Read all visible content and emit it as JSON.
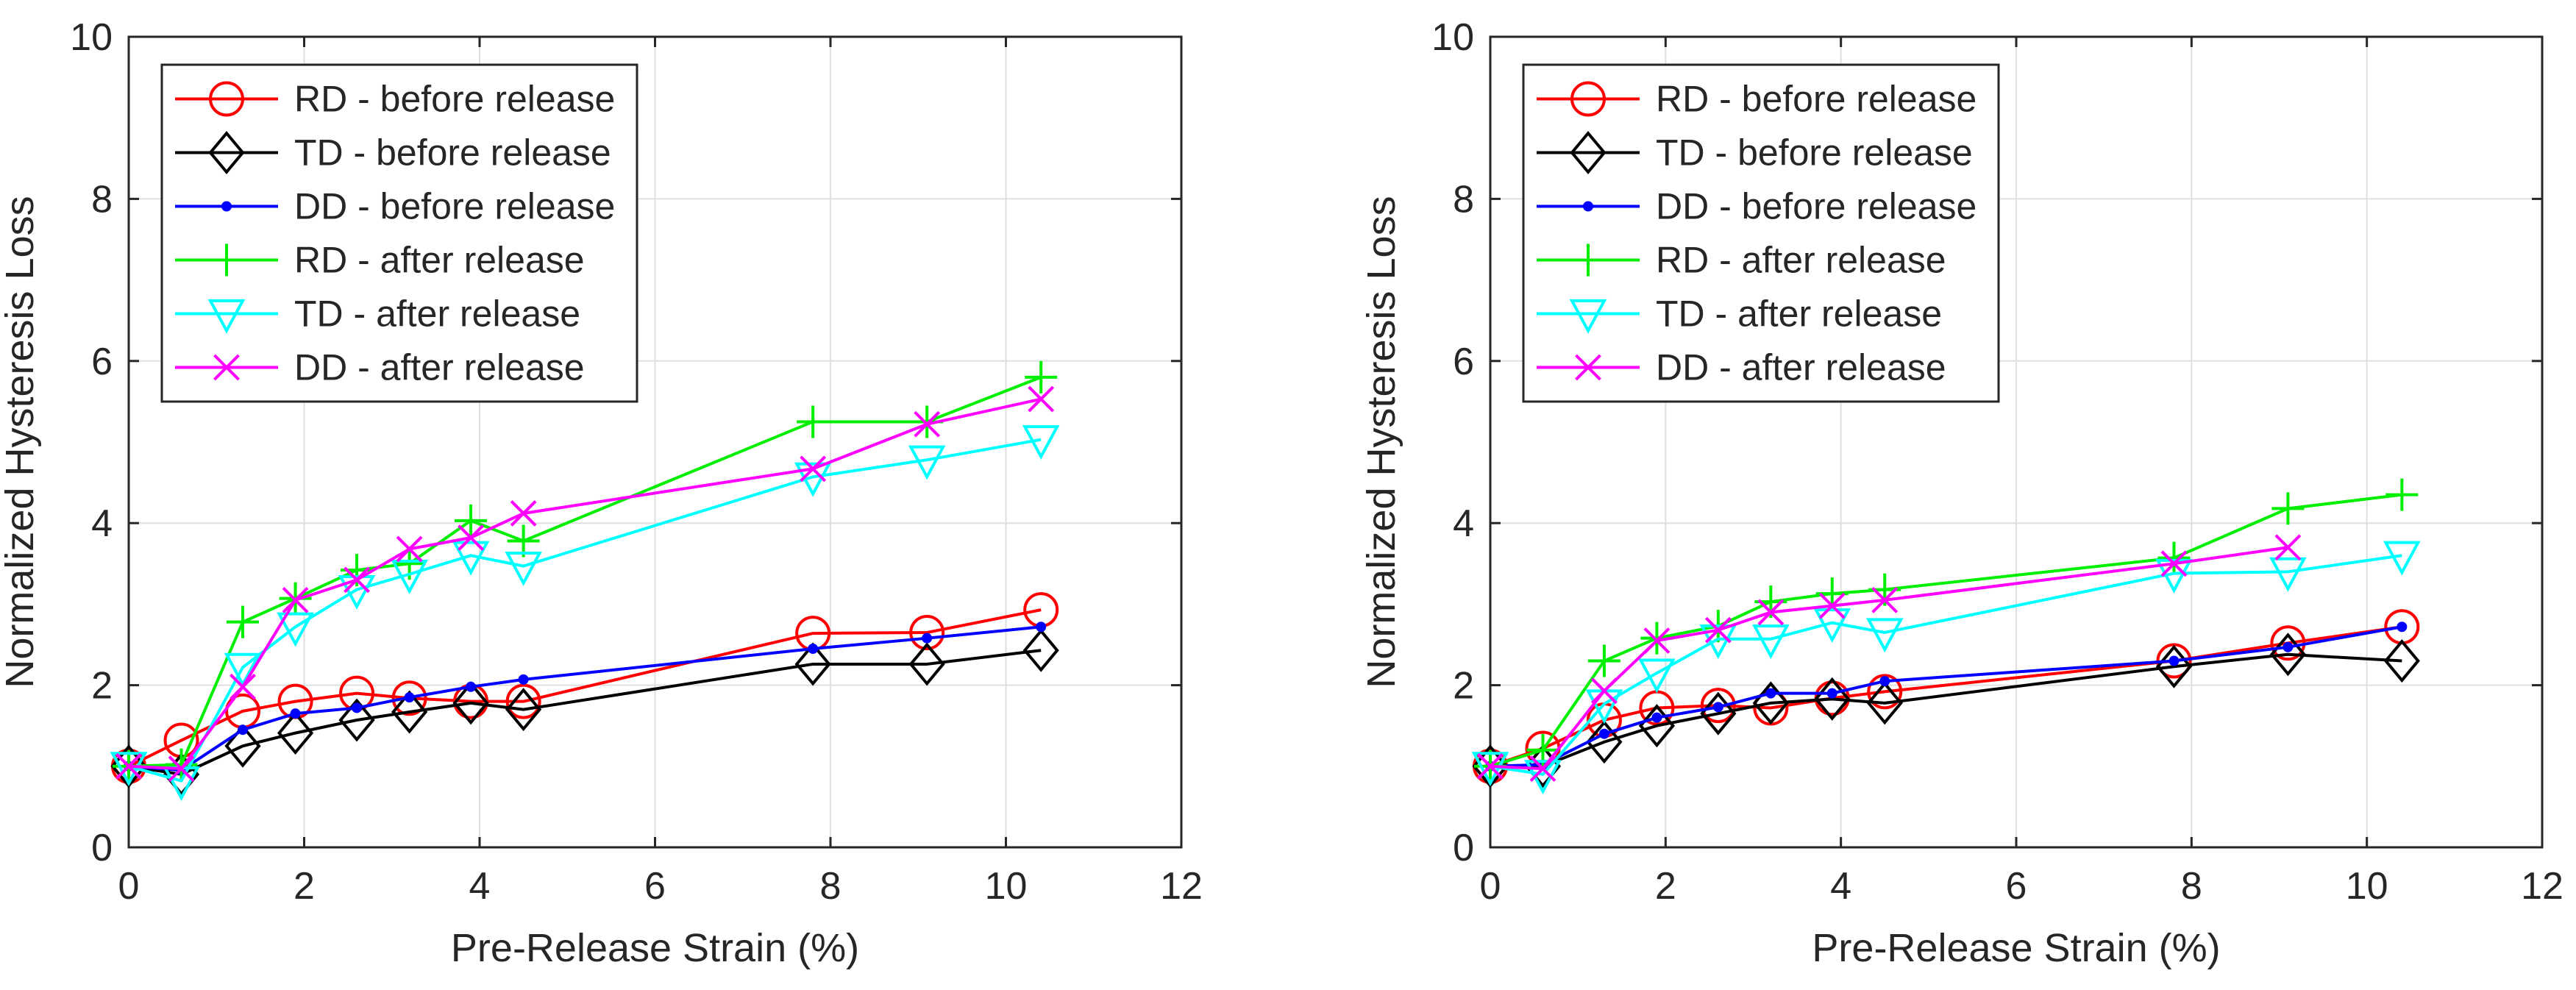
{
  "chart_data": [
    {
      "type": "line",
      "title": "",
      "xlabel": "Pre-Release Strain (%)",
      "ylabel": "Normalized Hysteresis Loss",
      "xlim": [
        0,
        12
      ],
      "ylim": [
        0,
        10
      ],
      "xticks": [
        0,
        2,
        4,
        6,
        8,
        10,
        12
      ],
      "yticks": [
        0,
        2,
        4,
        6,
        8,
        10
      ],
      "grid": true,
      "legend_position": "top-left",
      "series": [
        {
          "name": "RD - before release",
          "color": "#ff0000",
          "marker": "circle",
          "x": [
            0,
            0.6,
            1.3,
            1.9,
            2.6,
            3.2,
            3.9,
            4.5,
            7.8,
            9.1,
            10.4
          ],
          "y": [
            1.0,
            1.32,
            1.68,
            1.8,
            1.9,
            1.84,
            1.8,
            1.8,
            2.64,
            2.65,
            2.93
          ]
        },
        {
          "name": "TD - before release",
          "color": "#000000",
          "marker": "diamond",
          "x": [
            0,
            0.6,
            1.3,
            1.9,
            2.6,
            3.2,
            3.9,
            4.5,
            7.8,
            9.1,
            10.4
          ],
          "y": [
            1.0,
            0.9,
            1.25,
            1.41,
            1.57,
            1.67,
            1.78,
            1.7,
            2.26,
            2.26,
            2.43
          ]
        },
        {
          "name": "DD - before release",
          "color": "#0000ff",
          "marker": "dot",
          "x": [
            0,
            0.6,
            1.3,
            1.9,
            2.6,
            3.2,
            3.9,
            4.5,
            7.8,
            9.1,
            10.4
          ],
          "y": [
            1.0,
            0.95,
            1.45,
            1.65,
            1.72,
            1.85,
            1.98,
            2.07,
            2.45,
            2.58,
            2.72
          ]
        },
        {
          "name": "RD - after release",
          "color": "#00ee00",
          "marker": "plus",
          "x": [
            0,
            0.6,
            1.3,
            1.9,
            2.6,
            3.2,
            3.9,
            4.5,
            7.8,
            9.1,
            10.4
          ],
          "y": [
            1.0,
            1.02,
            2.78,
            3.07,
            3.42,
            3.5,
            4.03,
            3.78,
            5.25,
            5.25,
            5.8
          ]
        },
        {
          "name": "TD - after release",
          "color": "#00ffff",
          "marker": "triangle-down",
          "x": [
            0,
            0.6,
            1.3,
            1.9,
            2.6,
            3.2,
            3.9,
            4.5,
            7.8,
            9.1,
            10.4
          ],
          "y": [
            1.0,
            0.82,
            2.22,
            2.72,
            3.18,
            3.37,
            3.6,
            3.47,
            4.57,
            4.78,
            5.03
          ]
        },
        {
          "name": "DD - after release",
          "color": "#ff00ff",
          "marker": "x",
          "x": [
            0,
            0.6,
            1.3,
            1.9,
            2.6,
            3.2,
            3.9,
            4.5,
            7.8,
            9.1,
            10.4
          ],
          "y": [
            1.0,
            0.97,
            1.98,
            3.05,
            3.3,
            3.68,
            3.82,
            4.12,
            4.67,
            5.22,
            5.53
          ]
        }
      ]
    },
    {
      "type": "line",
      "title": "",
      "xlabel": "Pre-Release Strain (%)",
      "ylabel": "Normalized Hysteresis Loss",
      "xlim": [
        0,
        12
      ],
      "ylim": [
        0,
        10
      ],
      "xticks": [
        0,
        2,
        4,
        6,
        8,
        10,
        12
      ],
      "yticks": [
        0,
        2,
        4,
        6,
        8,
        10
      ],
      "grid": true,
      "legend_position": "top-left",
      "series": [
        {
          "name": "RD - before release",
          "color": "#ff0000",
          "marker": "circle",
          "x": [
            0,
            0.6,
            1.3,
            1.9,
            2.6,
            3.2,
            3.9,
            4.5,
            7.8,
            9.1,
            10.4
          ],
          "y": [
            1.0,
            1.22,
            1.57,
            1.72,
            1.75,
            1.72,
            1.84,
            1.92,
            2.3,
            2.52,
            2.72
          ]
        },
        {
          "name": "TD - before release",
          "color": "#000000",
          "marker": "diamond",
          "x": [
            0,
            0.6,
            1.3,
            1.9,
            2.6,
            3.2,
            3.9,
            4.5,
            7.8,
            9.1,
            10.4
          ],
          "y": [
            1.0,
            1.0,
            1.3,
            1.5,
            1.65,
            1.78,
            1.83,
            1.78,
            2.23,
            2.38,
            2.3
          ]
        },
        {
          "name": "DD - before release",
          "color": "#0000ff",
          "marker": "dot",
          "x": [
            0,
            0.6,
            1.3,
            1.9,
            2.6,
            3.2,
            3.9,
            4.5,
            7.8,
            9.1,
            10.4
          ],
          "y": [
            1.0,
            1.02,
            1.4,
            1.6,
            1.73,
            1.9,
            1.9,
            2.05,
            2.3,
            2.47,
            2.72
          ]
        },
        {
          "name": "RD - after release",
          "color": "#00ee00",
          "marker": "plus",
          "x": [
            0,
            0.6,
            1.3,
            1.9,
            2.6,
            3.2,
            3.9,
            4.5,
            7.8,
            9.1,
            10.4
          ],
          "y": [
            1.0,
            1.2,
            2.3,
            2.58,
            2.73,
            3.03,
            3.13,
            3.18,
            3.57,
            4.18,
            4.35
          ]
        },
        {
          "name": "TD - after release",
          "color": "#00ffff",
          "marker": "triangle-down",
          "x": [
            0,
            0.6,
            1.3,
            1.9,
            2.6,
            3.2,
            3.9,
            4.5,
            7.8,
            9.1,
            10.4
          ],
          "y": [
            1.0,
            0.9,
            1.77,
            2.15,
            2.57,
            2.57,
            2.77,
            2.65,
            3.38,
            3.4,
            3.6
          ]
        },
        {
          "name": "DD - after release",
          "color": "#ff00ff",
          "marker": "x",
          "x": [
            0,
            0.6,
            1.3,
            1.9,
            2.6,
            3.2,
            3.9,
            4.5,
            7.8,
            9.1
          ],
          "y": [
            1.0,
            0.97,
            1.93,
            2.55,
            2.68,
            2.9,
            2.98,
            3.05,
            3.5,
            3.7
          ]
        }
      ]
    }
  ]
}
